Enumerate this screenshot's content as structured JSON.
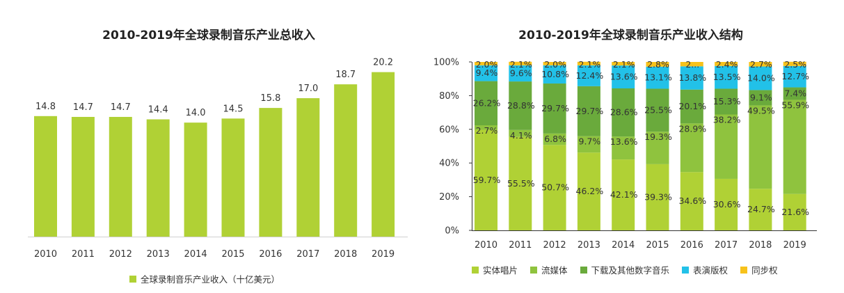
{
  "chart_data": [
    {
      "type": "bar",
      "title": "2010-2019年全球录制音乐产业总收入",
      "categories": [
        "2010",
        "2011",
        "2012",
        "2013",
        "2014",
        "2015",
        "2016",
        "2017",
        "2018",
        "2019"
      ],
      "series": [
        {
          "name": "全球录制音乐产业收入（十亿美元）",
          "values": [
            14.8,
            14.7,
            14.7,
            14.4,
            14.0,
            14.5,
            15.8,
            17.0,
            18.7,
            20.2
          ],
          "labels": [
            "14.8",
            "14.7",
            "14.7",
            "14.4",
            "14.0",
            "14.5",
            "15.8",
            "17.0",
            "18.7",
            "20.2"
          ],
          "color": "#b0d135"
        }
      ],
      "ylim": [
        0,
        23.5
      ],
      "grid": false,
      "legend_position": "bottom"
    },
    {
      "type": "bar",
      "stacked": true,
      "title": "2010-2019年全球录制音乐产业收入结构",
      "categories": [
        "2010",
        "2011",
        "2012",
        "2013",
        "2014",
        "2015",
        "2016",
        "2017",
        "2018",
        "2019"
      ],
      "y_ticks": [
        "0%",
        "20%",
        "40%",
        "60%",
        "80%",
        "100%"
      ],
      "ylim": [
        0,
        100
      ],
      "grid": false,
      "legend_position": "bottom",
      "series": [
        {
          "name": "实体唱片",
          "color": "#b0d135",
          "values": [
            59.7,
            55.5,
            50.7,
            46.2,
            42.1,
            39.3,
            34.6,
            30.6,
            24.7,
            21.6
          ],
          "labels": [
            "59.7%",
            "55.5%",
            "50.7%",
            "46.2%",
            "42.1%",
            "39.3%",
            "34.6%",
            "30.6%",
            "24.7%",
            "21.6%"
          ]
        },
        {
          "name": "流媒体",
          "color": "#8fc33e",
          "values": [
            2.7,
            4.1,
            6.8,
            9.7,
            13.6,
            19.3,
            28.9,
            38.2,
            49.5,
            55.9
          ],
          "labels": [
            "2.7%",
            "4.1%",
            "6.8%",
            "9.7%",
            "13.6%",
            "19.3%",
            "28.9%",
            "38.2%",
            "49.5%",
            "55.9%"
          ]
        },
        {
          "name": "下载及其他数字音乐",
          "color": "#6aaa3c",
          "values": [
            26.2,
            28.8,
            29.7,
            29.7,
            28.6,
            25.5,
            20.1,
            15.3,
            9.1,
            7.4
          ],
          "labels": [
            "26.2%",
            "28.8%",
            "29.7%",
            "29.7%",
            "28.6%",
            "25.5%",
            "20.1%",
            "15.3%",
            "9.1%",
            "7.4%"
          ]
        },
        {
          "name": "表演版权",
          "color": "#22c1e8",
          "values": [
            9.4,
            9.6,
            10.8,
            12.4,
            13.6,
            13.1,
            13.8,
            13.5,
            14.0,
            12.7
          ],
          "labels": [
            "9.4%",
            "9.6%",
            "10.8%",
            "12.4%",
            "13.6%",
            "13.1%",
            "13.8%",
            "13.5%",
            "14.0%",
            "12.7%"
          ]
        },
        {
          "name": "同步权",
          "color": "#f7c21b",
          "values": [
            2.0,
            2.1,
            2.0,
            2.1,
            2.1,
            2.8,
            2.6,
            2.4,
            2.7,
            2.5
          ],
          "labels": [
            "2.0%",
            "2.1%",
            "2.0%",
            "2.1%",
            "2.1%",
            "2.8%",
            "2...",
            "2.4%",
            "2.7%",
            "2.5%"
          ]
        }
      ]
    }
  ]
}
